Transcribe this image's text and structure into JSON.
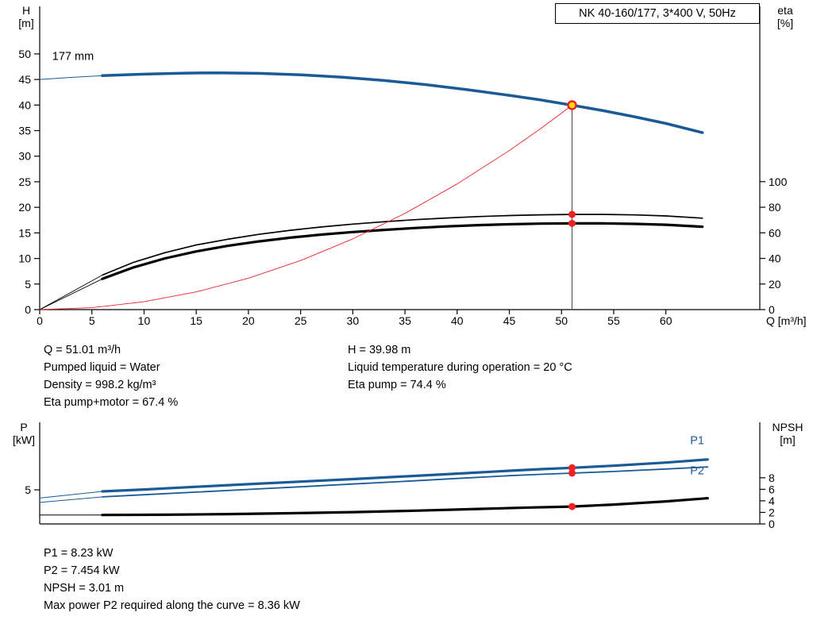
{
  "title_box": "NK 40-160/177, 3*400 V, 50Hz",
  "colors": {
    "curve_blue": "#1a5a96",
    "curve_red": "#e8242b",
    "dot_red": "#ee2222",
    "duty_yellow": "#ffdd00",
    "axis_black": "#000000"
  },
  "info_top_left": [
    "Q = 51.01 m³/h",
    "Pumped liquid = Water",
    "Density = 998.2 kg/m³",
    "Eta pump+motor = 67.4 %"
  ],
  "info_top_right": [
    "H = 39.98 m",
    "Liquid temperature during operation = 20 °C",
    "Eta pump = 74.4 %"
  ],
  "info_bottom": [
    "P1 = 8.23 kW",
    "P2 = 7.454 kW",
    "NPSH = 3.01 m",
    "Max power P2 required along the curve = 8.36 kW"
  ],
  "chart_data": [
    {
      "type": "line",
      "title": "NK 40-160/177, 3*400 V, 50Hz",
      "x": {
        "label": "Q [m³/h]",
        "min": 0,
        "max": 69,
        "ticks": [
          0,
          5,
          10,
          15,
          20,
          25,
          30,
          35,
          40,
          45,
          50,
          55,
          60
        ]
      },
      "y_left": {
        "label_lines": [
          "H",
          "[m]"
        ],
        "min": 0,
        "max": 59.3,
        "ticks": [
          0,
          5,
          10,
          15,
          20,
          25,
          30,
          35,
          40,
          45,
          50
        ]
      },
      "y_right": {
        "label_lines": [
          "eta",
          "[%]"
        ],
        "min": 0,
        "max": 237,
        "ticks": [
          0,
          20,
          40,
          60,
          80,
          100
        ]
      },
      "series": [
        {
          "name": "head-curve-lead",
          "color": "#1a5a96",
          "width": 1,
          "axis": "left",
          "points": [
            [
              0,
              45.0
            ],
            [
              3,
              45.4
            ],
            [
              6,
              45.75
            ]
          ]
        },
        {
          "name": "head-curve",
          "color": "#1a5a96",
          "width": 3.5,
          "axis": "left",
          "points": [
            [
              6,
              45.75
            ],
            [
              10,
              46.05
            ],
            [
              14,
              46.25
            ],
            [
              17,
              46.3
            ],
            [
              21,
              46.2
            ],
            [
              25,
              45.9
            ],
            [
              29,
              45.45
            ],
            [
              33,
              44.8
            ],
            [
              37,
              44.0
            ],
            [
              41,
              43.0
            ],
            [
              45,
              41.9
            ],
            [
              48,
              41.0
            ],
            [
              51.01,
              39.98
            ],
            [
              54,
              38.9
            ],
            [
              57,
              37.7
            ],
            [
              60,
              36.4
            ],
            [
              63.5,
              34.6
            ]
          ]
        },
        {
          "name": "eta-pump-curve-lead",
          "color": "#000000",
          "width": 0.9,
          "axis": "right",
          "points": [
            [
              0,
              0
            ],
            [
              6,
              27
            ]
          ]
        },
        {
          "name": "eta-pump-curve",
          "color": "#000000",
          "width": 1.7,
          "axis": "right",
          "points": [
            [
              6,
              27
            ],
            [
              9,
              37
            ],
            [
              12,
              44.5
            ],
            [
              15,
              50.5
            ],
            [
              18,
              55
            ],
            [
              21,
              58.8
            ],
            [
              24,
              62
            ],
            [
              27,
              64.6
            ],
            [
              30,
              66.8
            ],
            [
              33,
              68.7
            ],
            [
              36,
              70.3
            ],
            [
              39,
              71.6
            ],
            [
              42,
              72.7
            ],
            [
              45,
              73.5
            ],
            [
              48,
              74.1
            ],
            [
              51.01,
              74.4
            ],
            [
              54,
              74.4
            ],
            [
              57,
              74.0
            ],
            [
              60,
              73.2
            ],
            [
              63.5,
              71.5
            ]
          ]
        },
        {
          "name": "eta-pump-motor-curve-lead",
          "color": "#000000",
          "width": 0.9,
          "axis": "right",
          "points": [
            [
              0,
              0
            ],
            [
              6,
              24
            ]
          ]
        },
        {
          "name": "eta-pump-motor-curve",
          "color": "#000000",
          "width": 3.2,
          "axis": "right",
          "points": [
            [
              6,
              24
            ],
            [
              9,
              33
            ],
            [
              12,
              40
            ],
            [
              15,
              45.5
            ],
            [
              18,
              49.8
            ],
            [
              21,
              53.3
            ],
            [
              24,
              56.2
            ],
            [
              27,
              58.6
            ],
            [
              30,
              60.6
            ],
            [
              33,
              62.3
            ],
            [
              36,
              63.8
            ],
            [
              39,
              65.0
            ],
            [
              42,
              66.0
            ],
            [
              45,
              66.7
            ],
            [
              48,
              67.2
            ],
            [
              51.01,
              67.4
            ],
            [
              54,
              67.4
            ],
            [
              57,
              67.0
            ],
            [
              60,
              66.3
            ],
            [
              63.5,
              64.8
            ]
          ]
        },
        {
          "name": "system-curve",
          "color": "#e8242b",
          "width": 0.9,
          "axis": "left",
          "points": [
            [
              0,
              0
            ],
            [
              5,
              0.38
            ],
            [
              10,
              1.54
            ],
            [
              15,
              3.46
            ],
            [
              20,
              6.15
            ],
            [
              25,
              9.6
            ],
            [
              30,
              13.83
            ],
            [
              35,
              18.82
            ],
            [
              40,
              24.58
            ],
            [
              45,
              31.11
            ],
            [
              48,
              35.4
            ],
            [
              51.01,
              39.98
            ]
          ]
        },
        {
          "name": "duty-vertical-line",
          "color": "#444444",
          "width": 1,
          "axis": "left",
          "points": [
            [
              51.01,
              0
            ],
            [
              51.01,
              39.98
            ]
          ]
        }
      ],
      "markers": [
        {
          "name": "eta-pump-dot",
          "x": 51.01,
          "y": 74.4,
          "axis": "right",
          "r": 4.5,
          "fill": "#ee2222"
        },
        {
          "name": "eta-pump-motor-dot",
          "x": 51.01,
          "y": 67.4,
          "axis": "right",
          "r": 4.5,
          "fill": "#ee2222"
        },
        {
          "name": "duty-point",
          "x": 51.01,
          "y": 39.98,
          "axis": "left",
          "r": 5,
          "fill": "#ffdd00",
          "stroke": "#e8242b",
          "stroke_width": 2.5
        }
      ],
      "annotations": [
        {
          "name": "impeller-diameter-label",
          "text": "177 mm",
          "x": 1.2,
          "y": 48.8,
          "axis": "left",
          "anchor": "start",
          "color": "#000000",
          "size": 14.5
        }
      ]
    },
    {
      "type": "line",
      "title": "Power and NPSH curves",
      "x": {
        "label": "",
        "min": 0,
        "max": 69,
        "ticks": []
      },
      "y_left": {
        "label_lines": [
          "P",
          "[kW]"
        ],
        "min": 0,
        "max": 14.9,
        "ticks": [
          5
        ]
      },
      "y_right": {
        "label_lines": [
          "NPSH",
          "[m]"
        ],
        "min": 0,
        "max": 17.6,
        "ticks": [
          0,
          2,
          4,
          6,
          8
        ]
      },
      "series": [
        {
          "name": "p1-curve-lead",
          "color": "#1a5a96",
          "width": 1,
          "axis": "left",
          "points": [
            [
              0,
              3.8
            ],
            [
              6,
              4.77
            ]
          ]
        },
        {
          "name": "p1-curve",
          "color": "#1a5a96",
          "width": 3.2,
          "axis": "left",
          "points": [
            [
              6,
              4.77
            ],
            [
              10,
              5.05
            ],
            [
              15,
              5.45
            ],
            [
              20,
              5.83
            ],
            [
              25,
              6.2
            ],
            [
              30,
              6.58
            ],
            [
              35,
              6.97
            ],
            [
              40,
              7.38
            ],
            [
              45,
              7.8
            ],
            [
              48,
              8.03
            ],
            [
              51.01,
              8.23
            ],
            [
              55,
              8.55
            ],
            [
              60,
              9.0
            ],
            [
              64,
              9.45
            ]
          ]
        },
        {
          "name": "p2-curve-lead",
          "color": "#1a5a96",
          "width": 1,
          "axis": "left",
          "points": [
            [
              0,
              3.15
            ],
            [
              6,
              3.97
            ]
          ]
        },
        {
          "name": "p2-curve",
          "color": "#1a5a96",
          "width": 1.8,
          "axis": "left",
          "points": [
            [
              6,
              3.97
            ],
            [
              10,
              4.28
            ],
            [
              15,
              4.67
            ],
            [
              20,
              5.06
            ],
            [
              25,
              5.45
            ],
            [
              30,
              5.85
            ],
            [
              35,
              6.25
            ],
            [
              40,
              6.67
            ],
            [
              45,
              7.08
            ],
            [
              48,
              7.28
            ],
            [
              51.01,
              7.454
            ],
            [
              55,
              7.7
            ],
            [
              60,
              8.05
            ],
            [
              64,
              8.36
            ]
          ]
        },
        {
          "name": "npsh-curve-lead",
          "color": "#000000",
          "width": 1,
          "axis": "right",
          "points": [
            [
              0,
              1.55
            ],
            [
              6,
              1.55
            ]
          ]
        },
        {
          "name": "npsh-curve",
          "color": "#000000",
          "width": 3.2,
          "axis": "right",
          "points": [
            [
              6,
              1.55
            ],
            [
              12,
              1.6
            ],
            [
              18,
              1.7
            ],
            [
              24,
              1.85
            ],
            [
              30,
              2.05
            ],
            [
              36,
              2.3
            ],
            [
              42,
              2.6
            ],
            [
              47,
              2.85
            ],
            [
              51.01,
              3.01
            ],
            [
              55,
              3.35
            ],
            [
              60,
              3.9
            ],
            [
              64,
              4.45
            ]
          ]
        }
      ],
      "markers": [
        {
          "name": "p1-dot",
          "x": 51.01,
          "y": 8.23,
          "axis": "left",
          "r": 4.5,
          "fill": "#ee2222"
        },
        {
          "name": "p2-dot",
          "x": 51.01,
          "y": 7.454,
          "axis": "left",
          "r": 4.5,
          "fill": "#ee2222"
        },
        {
          "name": "npsh-dot",
          "x": 51.01,
          "y": 3.01,
          "axis": "right",
          "r": 4.5,
          "fill": "#ee2222"
        }
      ],
      "annotations": [
        {
          "name": "p1-label",
          "text": "P1",
          "x": 63,
          "y": 11.7,
          "axis": "left",
          "anchor": "middle",
          "color": "#1a5a96",
          "size": 14.5
        },
        {
          "name": "p2-label",
          "text": "P2",
          "x": 63,
          "y": 7.25,
          "axis": "left",
          "anchor": "middle",
          "color": "#1a5a96",
          "size": 14.5
        }
      ]
    }
  ]
}
